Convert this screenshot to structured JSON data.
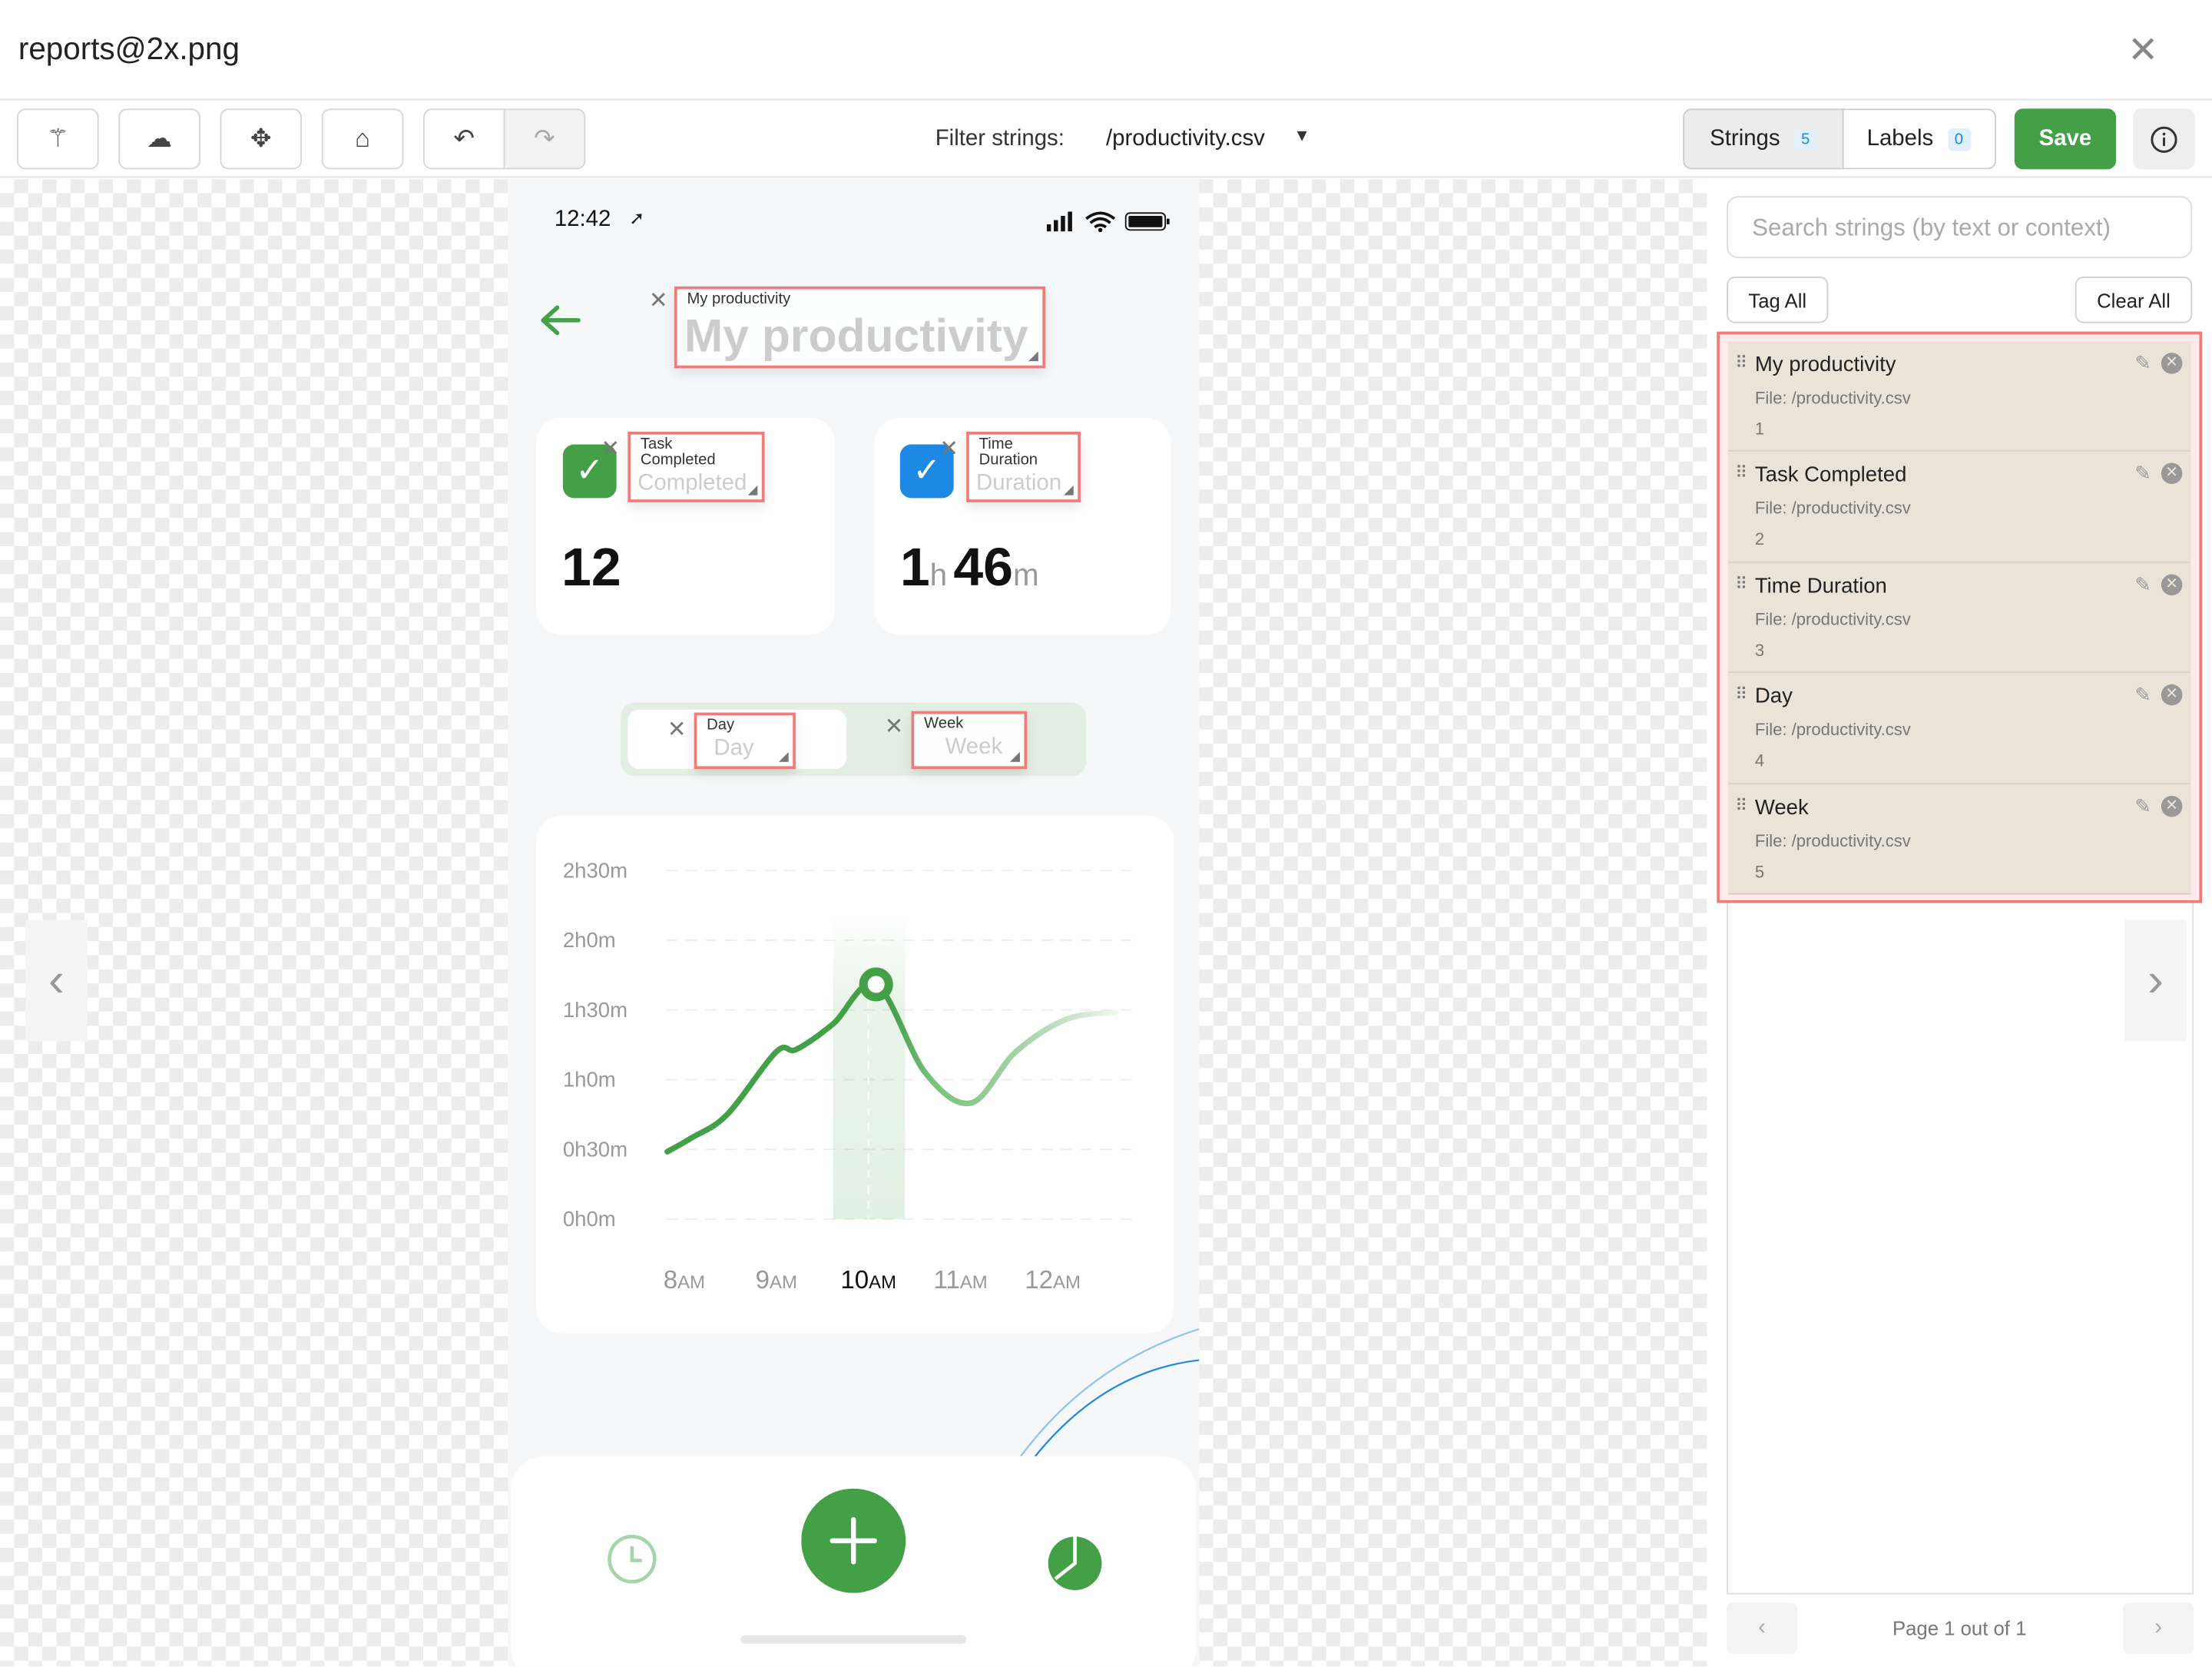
{
  "window": {
    "title": "reports@2x.png"
  },
  "toolbar": {
    "filter_label": "Filter strings:",
    "filter_value": "/productivity.csv",
    "strings_label": "Strings",
    "strings_count": "5",
    "labels_label": "Labels",
    "labels_count": "0",
    "save_label": "Save"
  },
  "phone": {
    "time": "12:42",
    "title": "My productivity",
    "tags": {
      "title": "My productivity",
      "task": "Task Completed",
      "time": "Time Duration",
      "day": "Day",
      "week": "Week"
    },
    "ghost": {
      "task": "Completed",
      "time": "Duration",
      "day": "Day",
      "week": "Week"
    },
    "task_value": "12",
    "duration": {
      "hours": "1",
      "h_unit": "h",
      "minutes": "46",
      "m_unit": "m"
    },
    "colors": {
      "green": "#43a047",
      "blue": "#1e88e5"
    }
  },
  "chart_data": {
    "type": "line",
    "y_ticks": [
      "2h30m",
      "2h0m",
      "1h30m",
      "1h0m",
      "0h30m",
      "0h0m"
    ],
    "x_ticks": [
      {
        "num": "8",
        "unit": "AM"
      },
      {
        "num": "9",
        "unit": "AM"
      },
      {
        "num": "10",
        "unit": "AM"
      },
      {
        "num": "11",
        "unit": "AM"
      },
      {
        "num": "12",
        "unit": "AM"
      }
    ],
    "ylim_minutes": [
      0,
      150
    ],
    "highlight": "10AM",
    "grid": true,
    "series": [
      {
        "points": [
          [
            "7:49",
            29
          ],
          [
            "8:05",
            35
          ],
          [
            "8:28",
            45
          ],
          [
            "9:00",
            72
          ],
          [
            "9:13",
            73
          ],
          [
            "9:37",
            84
          ],
          [
            "10:05",
            101
          ],
          [
            "10:37",
            63
          ],
          [
            "11:07",
            50
          ],
          [
            "11:36",
            72
          ],
          [
            "12:09",
            86
          ],
          [
            "12:41",
            89
          ]
        ]
      }
    ],
    "color": "#43a047"
  },
  "sidebar": {
    "search_placeholder": "Search strings (by text or context)",
    "tag_all": "Tag All",
    "clear_all": "Clear All",
    "items": [
      {
        "text": "My productivity",
        "file": "File: /productivity.csv",
        "index": "1"
      },
      {
        "text": "Task Completed",
        "file": "File: /productivity.csv",
        "index": "2"
      },
      {
        "text": "Time Duration",
        "file": "File: /productivity.csv",
        "index": "3"
      },
      {
        "text": "Day",
        "file": "File: /productivity.csv",
        "index": "4"
      },
      {
        "text": "Week",
        "file": "File: /productivity.csv",
        "index": "5"
      }
    ],
    "pagination": "Page 1 out of 1"
  }
}
